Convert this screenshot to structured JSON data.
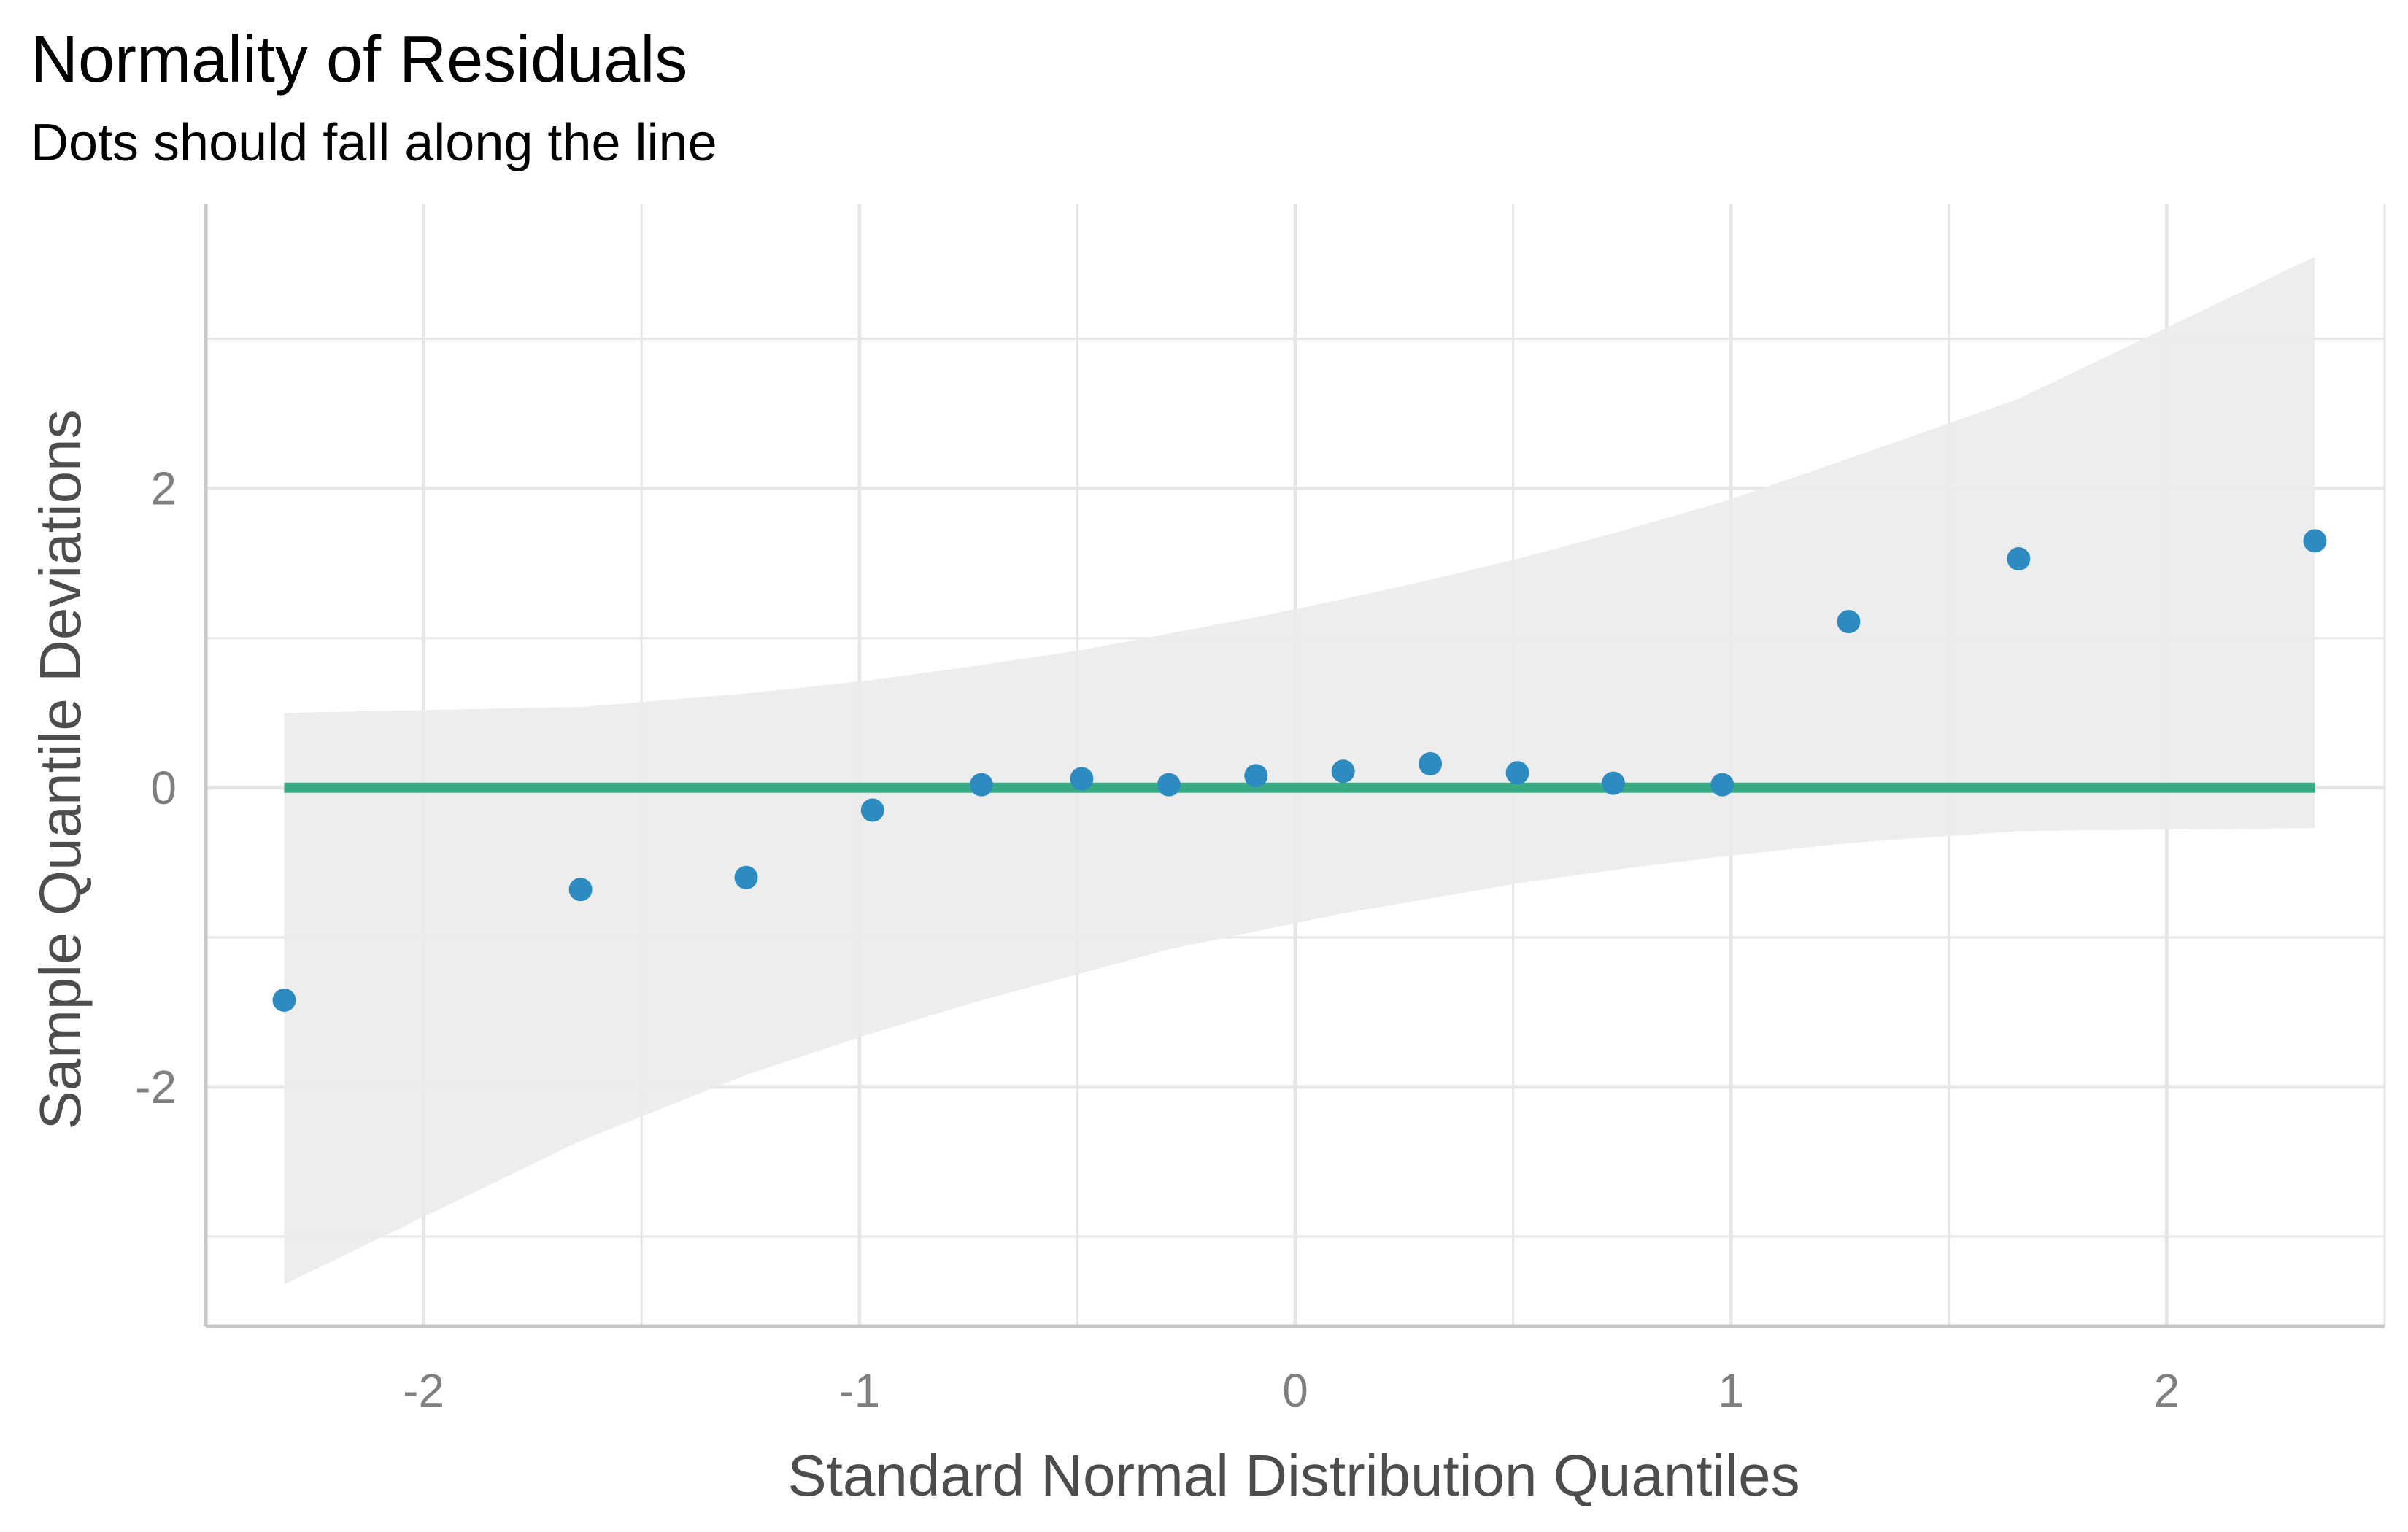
{
  "chart_data": {
    "type": "scatter",
    "title": "Normality of Residuals",
    "subtitle": "Dots should fall along the line",
    "xlabel": "Standard Normal Distribution Quantiles",
    "ylabel": "Sample Quantile Deviations",
    "xlim": [
      -2.5,
      2.5
    ],
    "ylim": [
      -3.6,
      3.9
    ],
    "x_ticks": [
      -2,
      -1,
      0,
      1,
      2
    ],
    "x_tick_labels": [
      "-2",
      "-1",
      "0",
      "1",
      "2"
    ],
    "y_ticks": [
      -2,
      0,
      2
    ],
    "y_tick_labels": [
      "-2",
      "0",
      "2"
    ],
    "grid": true,
    "colors": {
      "points": "#2e8bc0",
      "reference_line": "#3aaa85",
      "confidence_band": "#ebebeb",
      "grid": "#e6e6e6",
      "axis": "#c8c8c8"
    },
    "points": {
      "x": [
        -2.32,
        -1.64,
        -1.26,
        -0.97,
        -0.72,
        -0.49,
        -0.29,
        -0.09,
        0.11,
        0.31,
        0.51,
        0.73,
        0.98,
        1.27,
        1.66,
        2.34
      ],
      "y": [
        -1.42,
        -0.68,
        -0.6,
        -0.15,
        0.02,
        0.06,
        0.02,
        0.08,
        0.11,
        0.16,
        0.1,
        0.03,
        0.02,
        1.11,
        1.53,
        1.65
      ]
    },
    "reference_line": {
      "x": [
        -2.32,
        2.34
      ],
      "y": [
        0,
        0
      ]
    },
    "confidence_band": {
      "x": [
        -2.32,
        -1.64,
        -1.26,
        -0.97,
        -0.72,
        -0.49,
        -0.29,
        -0.09,
        0.11,
        0.31,
        0.51,
        0.73,
        0.98,
        1.27,
        1.66,
        2.34
      ],
      "upper": [
        0.5,
        0.54,
        0.63,
        0.72,
        0.82,
        0.92,
        1.03,
        1.14,
        1.26,
        1.39,
        1.53,
        1.7,
        1.91,
        2.2,
        2.6,
        3.55
      ],
      "lower": [
        -3.32,
        -2.36,
        -1.92,
        -1.64,
        -1.42,
        -1.24,
        -1.08,
        -0.96,
        -0.84,
        -0.74,
        -0.64,
        -0.55,
        -0.46,
        -0.37,
        -0.29,
        -0.27
      ]
    }
  }
}
